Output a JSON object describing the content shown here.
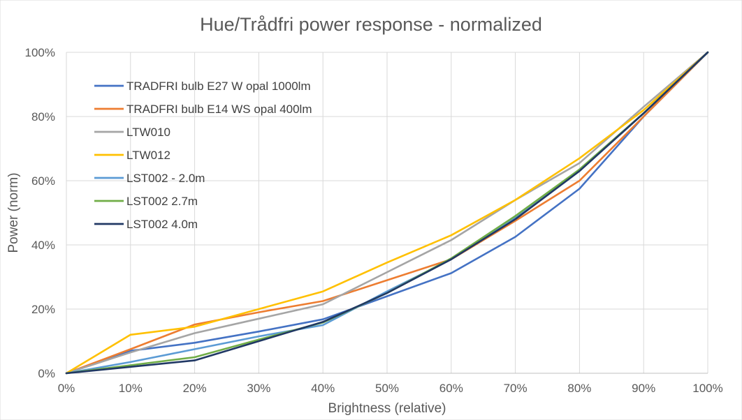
{
  "chart_data": {
    "type": "line",
    "title": "Hue/Trådfri power response - normalized",
    "xlabel": "Brightness (relative)",
    "ylabel": "Power (norm)",
    "x": [
      0,
      10,
      20,
      30,
      40,
      50,
      60,
      70,
      80,
      90,
      100
    ],
    "x_tick_labels": [
      "0%",
      "10%",
      "20%",
      "30%",
      "40%",
      "50%",
      "60%",
      "70%",
      "80%",
      "90%",
      "100%"
    ],
    "y_tick_labels": [
      "0%",
      "20%",
      "40%",
      "60%",
      "80%",
      "100%"
    ],
    "y_ticks": [
      0,
      20,
      40,
      60,
      80,
      100
    ],
    "xlim": [
      0,
      100
    ],
    "ylim": [
      0,
      100
    ],
    "grid": "vertical and horizontal",
    "legend_position": "top-left",
    "series": [
      {
        "name": "TRADFRI bulb E27 W opal 1000lm",
        "color": "#4472C4",
        "values": [
          0,
          7,
          9.5,
          13,
          16.8,
          24,
          31.2,
          42.5,
          57.5,
          80,
          100
        ]
      },
      {
        "name": "TRADFRI bulb E14 WS opal 400lm",
        "color": "#ED7D31",
        "values": [
          0,
          7.5,
          15.2,
          19,
          22.5,
          29,
          35.5,
          47.5,
          60,
          80,
          100
        ]
      },
      {
        "name": "LTW010",
        "color": "#A5A5A5",
        "values": [
          0,
          6.5,
          12.5,
          17,
          21.5,
          31.5,
          41.5,
          54,
          65.5,
          83,
          100
        ]
      },
      {
        "name": "LTW012",
        "color": "#FFC000",
        "values": [
          0,
          12,
          14.5,
          20,
          25.5,
          34.5,
          43,
          54,
          67,
          82,
          100
        ]
      },
      {
        "name": "LST002 - 2.0m",
        "color": "#5B9BD5",
        "values": [
          0,
          3.5,
          7.5,
          11.5,
          15,
          25.5,
          35.5,
          48.5,
          63.5,
          81,
          100
        ]
      },
      {
        "name": "LST002 2.7m",
        "color": "#70AD47",
        "values": [
          0,
          2.5,
          5,
          10.5,
          15.8,
          25,
          35.8,
          49,
          63.5,
          81,
          100
        ]
      },
      {
        "name": "LST002 4.0m",
        "color": "#203864",
        "values": [
          0,
          2,
          4,
          10,
          16,
          25,
          35.5,
          48,
          63,
          81,
          100
        ]
      }
    ]
  }
}
